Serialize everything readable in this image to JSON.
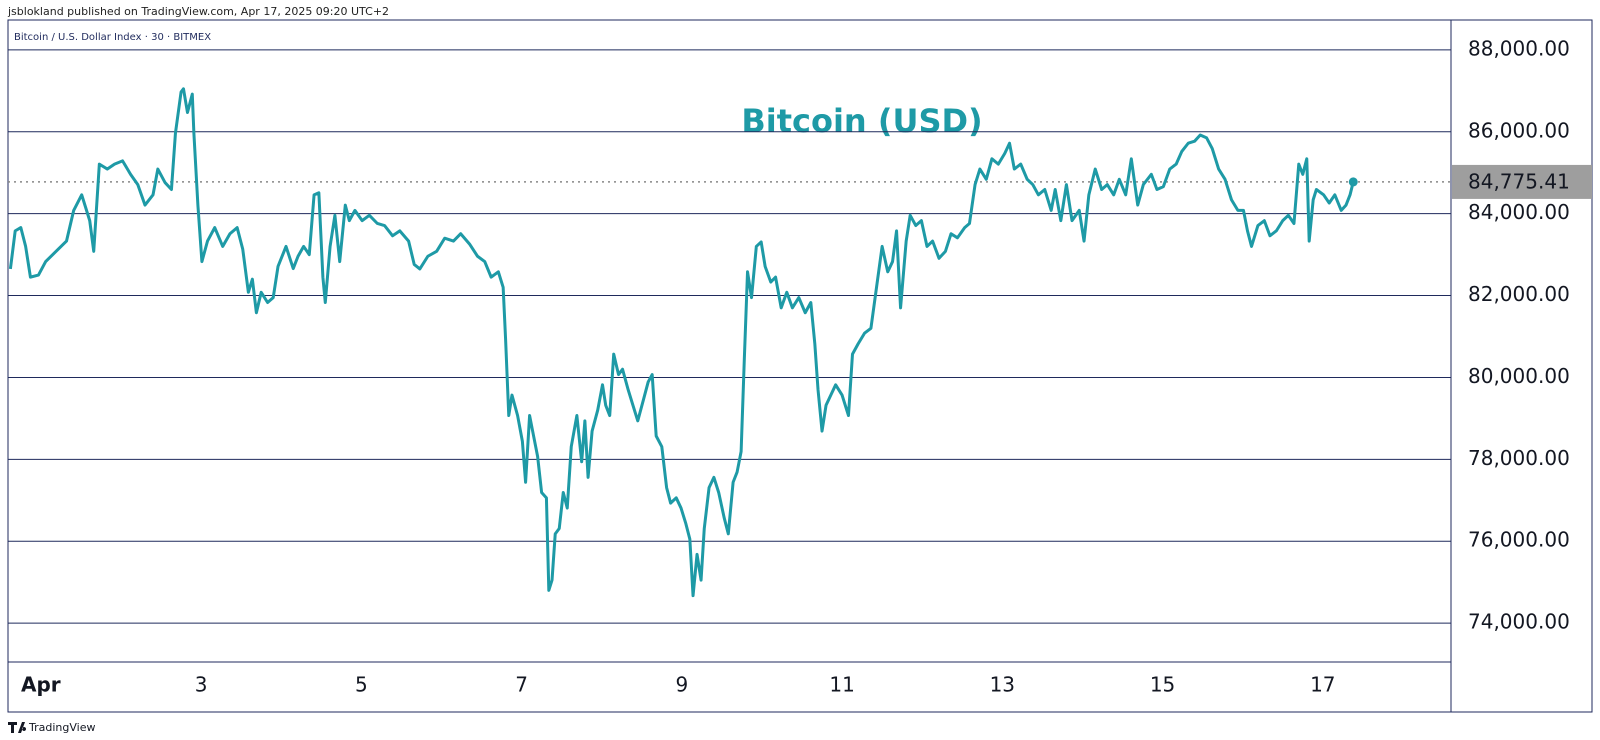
{
  "header": {
    "published": "jsblokland published on TradingView.com, Apr 17, 2025 09:20 UTC+2",
    "symbol": "Bitcoin / U.S. Dollar Index · 30 · BITMEX"
  },
  "footer": {
    "brand": "TradingView"
  },
  "chart_data": {
    "type": "line",
    "title": "Bitcoin (USD)",
    "x": [
      0.62,
      0.68,
      0.75,
      0.81,
      0.87,
      0.97,
      1.06,
      1.19,
      1.32,
      1.41,
      1.51,
      1.61,
      1.66,
      1.73,
      1.83,
      1.92,
      2.02,
      2.12,
      2.21,
      2.3,
      2.4,
      2.46,
      2.55,
      2.63,
      2.68,
      2.75,
      2.78,
      2.83,
      2.89,
      2.91,
      2.96,
      3.01,
      3.08,
      3.17,
      3.27,
      3.36,
      3.45,
      3.52,
      3.59,
      3.64,
      3.69,
      3.75,
      3.83,
      3.9,
      3.96,
      4.06,
      4.15,
      4.21,
      4.28,
      4.35,
      4.41,
      4.47,
      4.52,
      4.55,
      4.61,
      4.67,
      4.73,
      4.8,
      4.85,
      4.92,
      5.01,
      5.1,
      5.2,
      5.29,
      5.39,
      5.48,
      5.59,
      5.66,
      5.73,
      5.83,
      5.94,
      6.04,
      6.15,
      6.24,
      6.35,
      6.45,
      6.54,
      6.62,
      6.71,
      6.77,
      6.8,
      6.84,
      6.88,
      6.95,
      7.01,
      7.05,
      7.1,
      7.15,
      7.2,
      7.25,
      7.31,
      7.34,
      7.38,
      7.42,
      7.47,
      7.52,
      7.57,
      7.62,
      7.69,
      7.75,
      7.79,
      7.83,
      7.88,
      7.95,
      8.01,
      8.05,
      8.1,
      8.15,
      8.21,
      8.26,
      8.33,
      8.39,
      8.45,
      8.52,
      8.58,
      8.63,
      8.68,
      8.75,
      8.81,
      8.86,
      8.93,
      8.99,
      9.05,
      9.1,
      9.14,
      9.19,
      9.24,
      9.28,
      9.34,
      9.4,
      9.46,
      9.53,
      9.58,
      9.64,
      9.69,
      9.74,
      9.78,
      9.82,
      9.87,
      9.93,
      9.99,
      10.04,
      10.11,
      10.17,
      10.24,
      10.31,
      10.38,
      10.46,
      10.54,
      10.61,
      10.66,
      10.7,
      10.75,
      10.8,
      10.86,
      10.92,
      11.0,
      11.08,
      11.13,
      11.2,
      11.28,
      11.36,
      11.43,
      11.5,
      11.57,
      11.63,
      11.68,
      11.73,
      11.8,
      11.85,
      11.92,
      11.99,
      12.06,
      12.13,
      12.21,
      12.29,
      12.36,
      12.44,
      12.53,
      12.59,
      12.66,
      12.72,
      12.8,
      12.87,
      12.95,
      13.03,
      13.09,
      13.15,
      13.23,
      13.31,
      13.38,
      13.45,
      13.53,
      13.61,
      13.66,
      13.73,
      13.8,
      13.87,
      13.96,
      14.02,
      14.08,
      14.16,
      14.24,
      14.31,
      14.39,
      14.46,
      14.54,
      14.61,
      14.69,
      14.76,
      14.86,
      14.93,
      15.01,
      15.09,
      15.17,
      15.24,
      15.32,
      15.4,
      15.47,
      15.55,
      15.62,
      15.7,
      15.78,
      15.86,
      15.94,
      16.01,
      16.06,
      16.11,
      16.19,
      16.27,
      16.34,
      16.42,
      16.5,
      16.57,
      16.64,
      16.7,
      16.75,
      16.8,
      16.83,
      16.88,
      16.92,
      17.01,
      17.08,
      17.15,
      17.23,
      17.29,
      17.34,
      17.38
    ],
    "series": [
      {
        "color": "#1e9aa6",
        "values": [
          82650,
          83580,
          83660,
          83200,
          82450,
          82500,
          82830,
          83080,
          83330,
          84080,
          84460,
          83830,
          83080,
          85210,
          85090,
          85210,
          85290,
          84960,
          84710,
          84210,
          84460,
          85090,
          84760,
          84590,
          85970,
          86970,
          87050,
          86470,
          86920,
          85970,
          84210,
          82830,
          83330,
          83660,
          83200,
          83510,
          83660,
          83130,
          82080,
          82400,
          81580,
          82080,
          81830,
          81950,
          82710,
          83200,
          82660,
          82960,
          83200,
          83000,
          84460,
          84510,
          82450,
          81830,
          83200,
          83960,
          82830,
          84210,
          83830,
          84080,
          83830,
          83960,
          83760,
          83710,
          83460,
          83580,
          83330,
          82760,
          82650,
          82960,
          83080,
          83400,
          83330,
          83510,
          83260,
          82960,
          82830,
          82450,
          82580,
          82200,
          80950,
          79070,
          79570,
          79070,
          78440,
          77440,
          79070,
          78570,
          78070,
          77190,
          77060,
          74800,
          75050,
          76180,
          76310,
          77190,
          76810,
          78310,
          79070,
          77940,
          78940,
          77560,
          78690,
          79200,
          79820,
          79320,
          79070,
          80570,
          80070,
          80200,
          79700,
          79320,
          78940,
          79450,
          79890,
          80070,
          78570,
          78310,
          77310,
          76930,
          77060,
          76810,
          76430,
          76050,
          74670,
          75680,
          75050,
          76310,
          77310,
          77560,
          77190,
          76560,
          76180,
          77440,
          77690,
          78190,
          80450,
          82580,
          81950,
          83200,
          83310,
          82710,
          82330,
          82450,
          81700,
          82080,
          81700,
          81950,
          81580,
          81830,
          80820,
          79700,
          78690,
          79320,
          79570,
          79820,
          79570,
          79070,
          80570,
          80820,
          81080,
          81200,
          82200,
          83200,
          82580,
          82830,
          83580,
          81700,
          83330,
          83960,
          83710,
          83830,
          83200,
          83330,
          82910,
          83080,
          83510,
          83410,
          83660,
          83760,
          84710,
          85090,
          84840,
          85340,
          85210,
          85470,
          85720,
          85090,
          85210,
          84840,
          84710,
          84460,
          84590,
          84080,
          84590,
          83830,
          84710,
          83830,
          84080,
          83330,
          84460,
          85090,
          84590,
          84710,
          84460,
          84840,
          84460,
          85340,
          84210,
          84710,
          84960,
          84590,
          84660,
          85090,
          85210,
          85520,
          85720,
          85770,
          85920,
          85850,
          85590,
          85090,
          84840,
          84340,
          84080,
          84080,
          83580,
          83200,
          83710,
          83830,
          83460,
          83580,
          83830,
          83960,
          83760,
          85210,
          84960,
          85340,
          83330,
          84340,
          84590,
          84460,
          84260,
          84460,
          84080,
          84210,
          84460,
          84775.41
        ]
      }
    ],
    "last_price": {
      "value": 84775.41,
      "label": "84,775.41"
    },
    "xlim": [
      0.59,
      18.6
    ],
    "xticks": [
      {
        "value": 1,
        "label": "Apr"
      },
      3,
      5,
      7,
      9,
      11,
      13,
      15,
      17
    ],
    "ylim": [
      73050,
      88730
    ],
    "yticks": [
      {
        "value": 74000,
        "label": "74,000.00"
      },
      {
        "value": 76000,
        "label": "76,000.00"
      },
      {
        "value": 78000,
        "label": "78,000.00"
      },
      {
        "value": 80000,
        "label": "80,000.00"
      },
      {
        "value": 82000,
        "label": "82,000.00"
      },
      {
        "value": 84000,
        "label": "84,000.00"
      },
      {
        "value": 86000,
        "label": "86,000.00"
      },
      {
        "value": 88000,
        "label": "88,000.00"
      }
    ],
    "grid": true
  }
}
